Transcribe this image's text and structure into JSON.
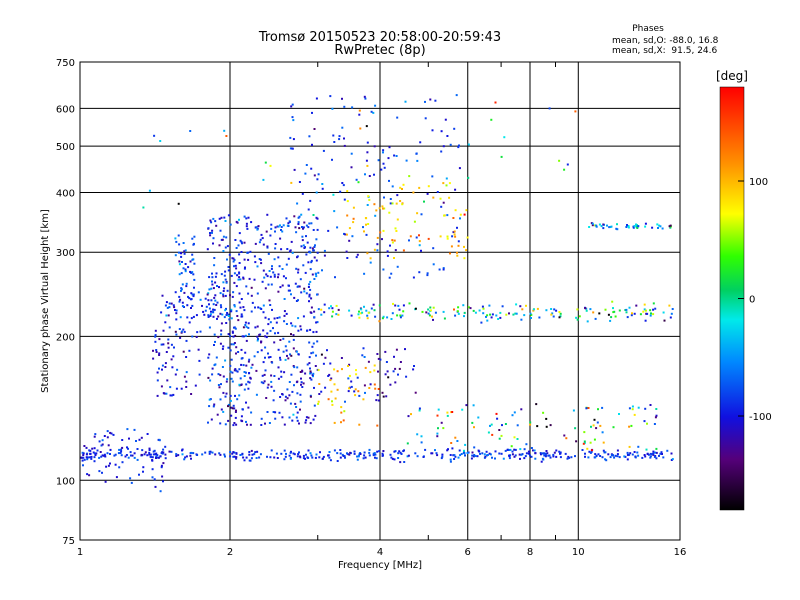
{
  "chart_data": {
    "type": "scatter",
    "title": "Tromsø 20150523 20:58:00-20:59:43",
    "subtitle": "RwPretec (8p)",
    "xlabel": "Frequency [MHz]",
    "ylabel": "Stationary phase Virtual Height [km]",
    "x_scale": "log",
    "y_scale": "log",
    "xlim": [
      1,
      16
    ],
    "ylim": [
      75,
      750
    ],
    "xticks": [
      1,
      2,
      4,
      6,
      8,
      10,
      16
    ],
    "xtick_labels": [
      "1",
      "2",
      "4",
      "6",
      "8",
      "10",
      "16"
    ],
    "x_minor_ticks": [
      3,
      5,
      7,
      9
    ],
    "yticks": [
      75,
      100,
      200,
      300,
      400,
      500,
      600,
      750
    ],
    "ytick_labels": [
      "75",
      "100",
      "200",
      "300",
      "400",
      "500",
      "600",
      "750"
    ],
    "grid": true,
    "stats": {
      "heading": "Phases",
      "line1": "mean, sd,O: -88.0, 16.8",
      "line2": "mean, sd,X:  91.5, 24.6"
    },
    "colorbar": {
      "label": "[deg]",
      "range": [
        -180,
        180
      ],
      "ticks": [
        100,
        0,
        -100
      ],
      "tick_labels": [
        "100",
        "0",
        "-100"
      ],
      "colormap": "rainbow"
    },
    "series": [
      {
        "x_range": [
          1.0,
          15.5
        ],
        "y": 113,
        "y_spread": 1.5,
        "phase": -88,
        "phase_spread": 15,
        "count": 420
      },
      {
        "x_range": [
          1.0,
          1.5
        ],
        "y": 110,
        "y_spread": 6,
        "phase": -95,
        "phase_spread": 15,
        "count": 60
      },
      {
        "x_range": [
          1.05,
          1.45
        ],
        "y_range": [
          113,
          128
        ],
        "phase": -95,
        "phase_spread": 15,
        "count": 30
      },
      {
        "x_range": [
          1.55,
          1.7
        ],
        "y_range": [
          240,
          330
        ],
        "phase": -80,
        "phase_spread": 20,
        "count": 50
      },
      {
        "x_range": [
          1.4,
          1.75
        ],
        "y_range": [
          150,
          210
        ],
        "phase": -100,
        "phase_spread": 20,
        "count": 70
      },
      {
        "x_range": [
          1.45,
          2.0
        ],
        "y": 230,
        "y_spread": 8,
        "phase": -90,
        "phase_spread": 20,
        "count": 60
      },
      {
        "x_range": [
          1.8,
          3.0
        ],
        "y_range": [
          130,
          360
        ],
        "phase": -92,
        "phase_spread": 25,
        "count": 650
      },
      {
        "x_range": [
          2.6,
          5.8
        ],
        "y_range": [
          265,
          640
        ],
        "phase": -85,
        "phase_spread": 18,
        "count": 170
      },
      {
        "x_range": [
          3.4,
          6.0
        ],
        "y_range": [
          290,
          420
        ],
        "phase": 95,
        "phase_spread": 22,
        "count": 80
      },
      {
        "x_range": [
          2.9,
          4.8
        ],
        "y_range": [
          145,
          190
        ],
        "phase": -110,
        "phase_spread": 25,
        "count": 60
      },
      {
        "x_range": [
          3.0,
          4.0
        ],
        "y_range": [
          130,
          175
        ],
        "phase": 100,
        "phase_spread": 20,
        "count": 40
      },
      {
        "x_range": [
          3.0,
          15.5
        ],
        "y": 225,
        "y_spread": 5,
        "phase": -20,
        "phase_spread": 70,
        "count": 180
      },
      {
        "x_range": [
          10.5,
          15.5
        ],
        "y": 340,
        "y_spread": 3,
        "phase": -60,
        "phase_spread": 50,
        "count": 45
      },
      {
        "x_range": [
          4.5,
          15.5
        ],
        "y_range": [
          115,
          145
        ],
        "phase": 0,
        "phase_spread": 90,
        "count": 110
      },
      {
        "x_range": [
          1.3,
          10.5
        ],
        "y_range": [
          350,
          620
        ],
        "phase": 0,
        "phase_spread": 100,
        "count": 40
      }
    ]
  }
}
